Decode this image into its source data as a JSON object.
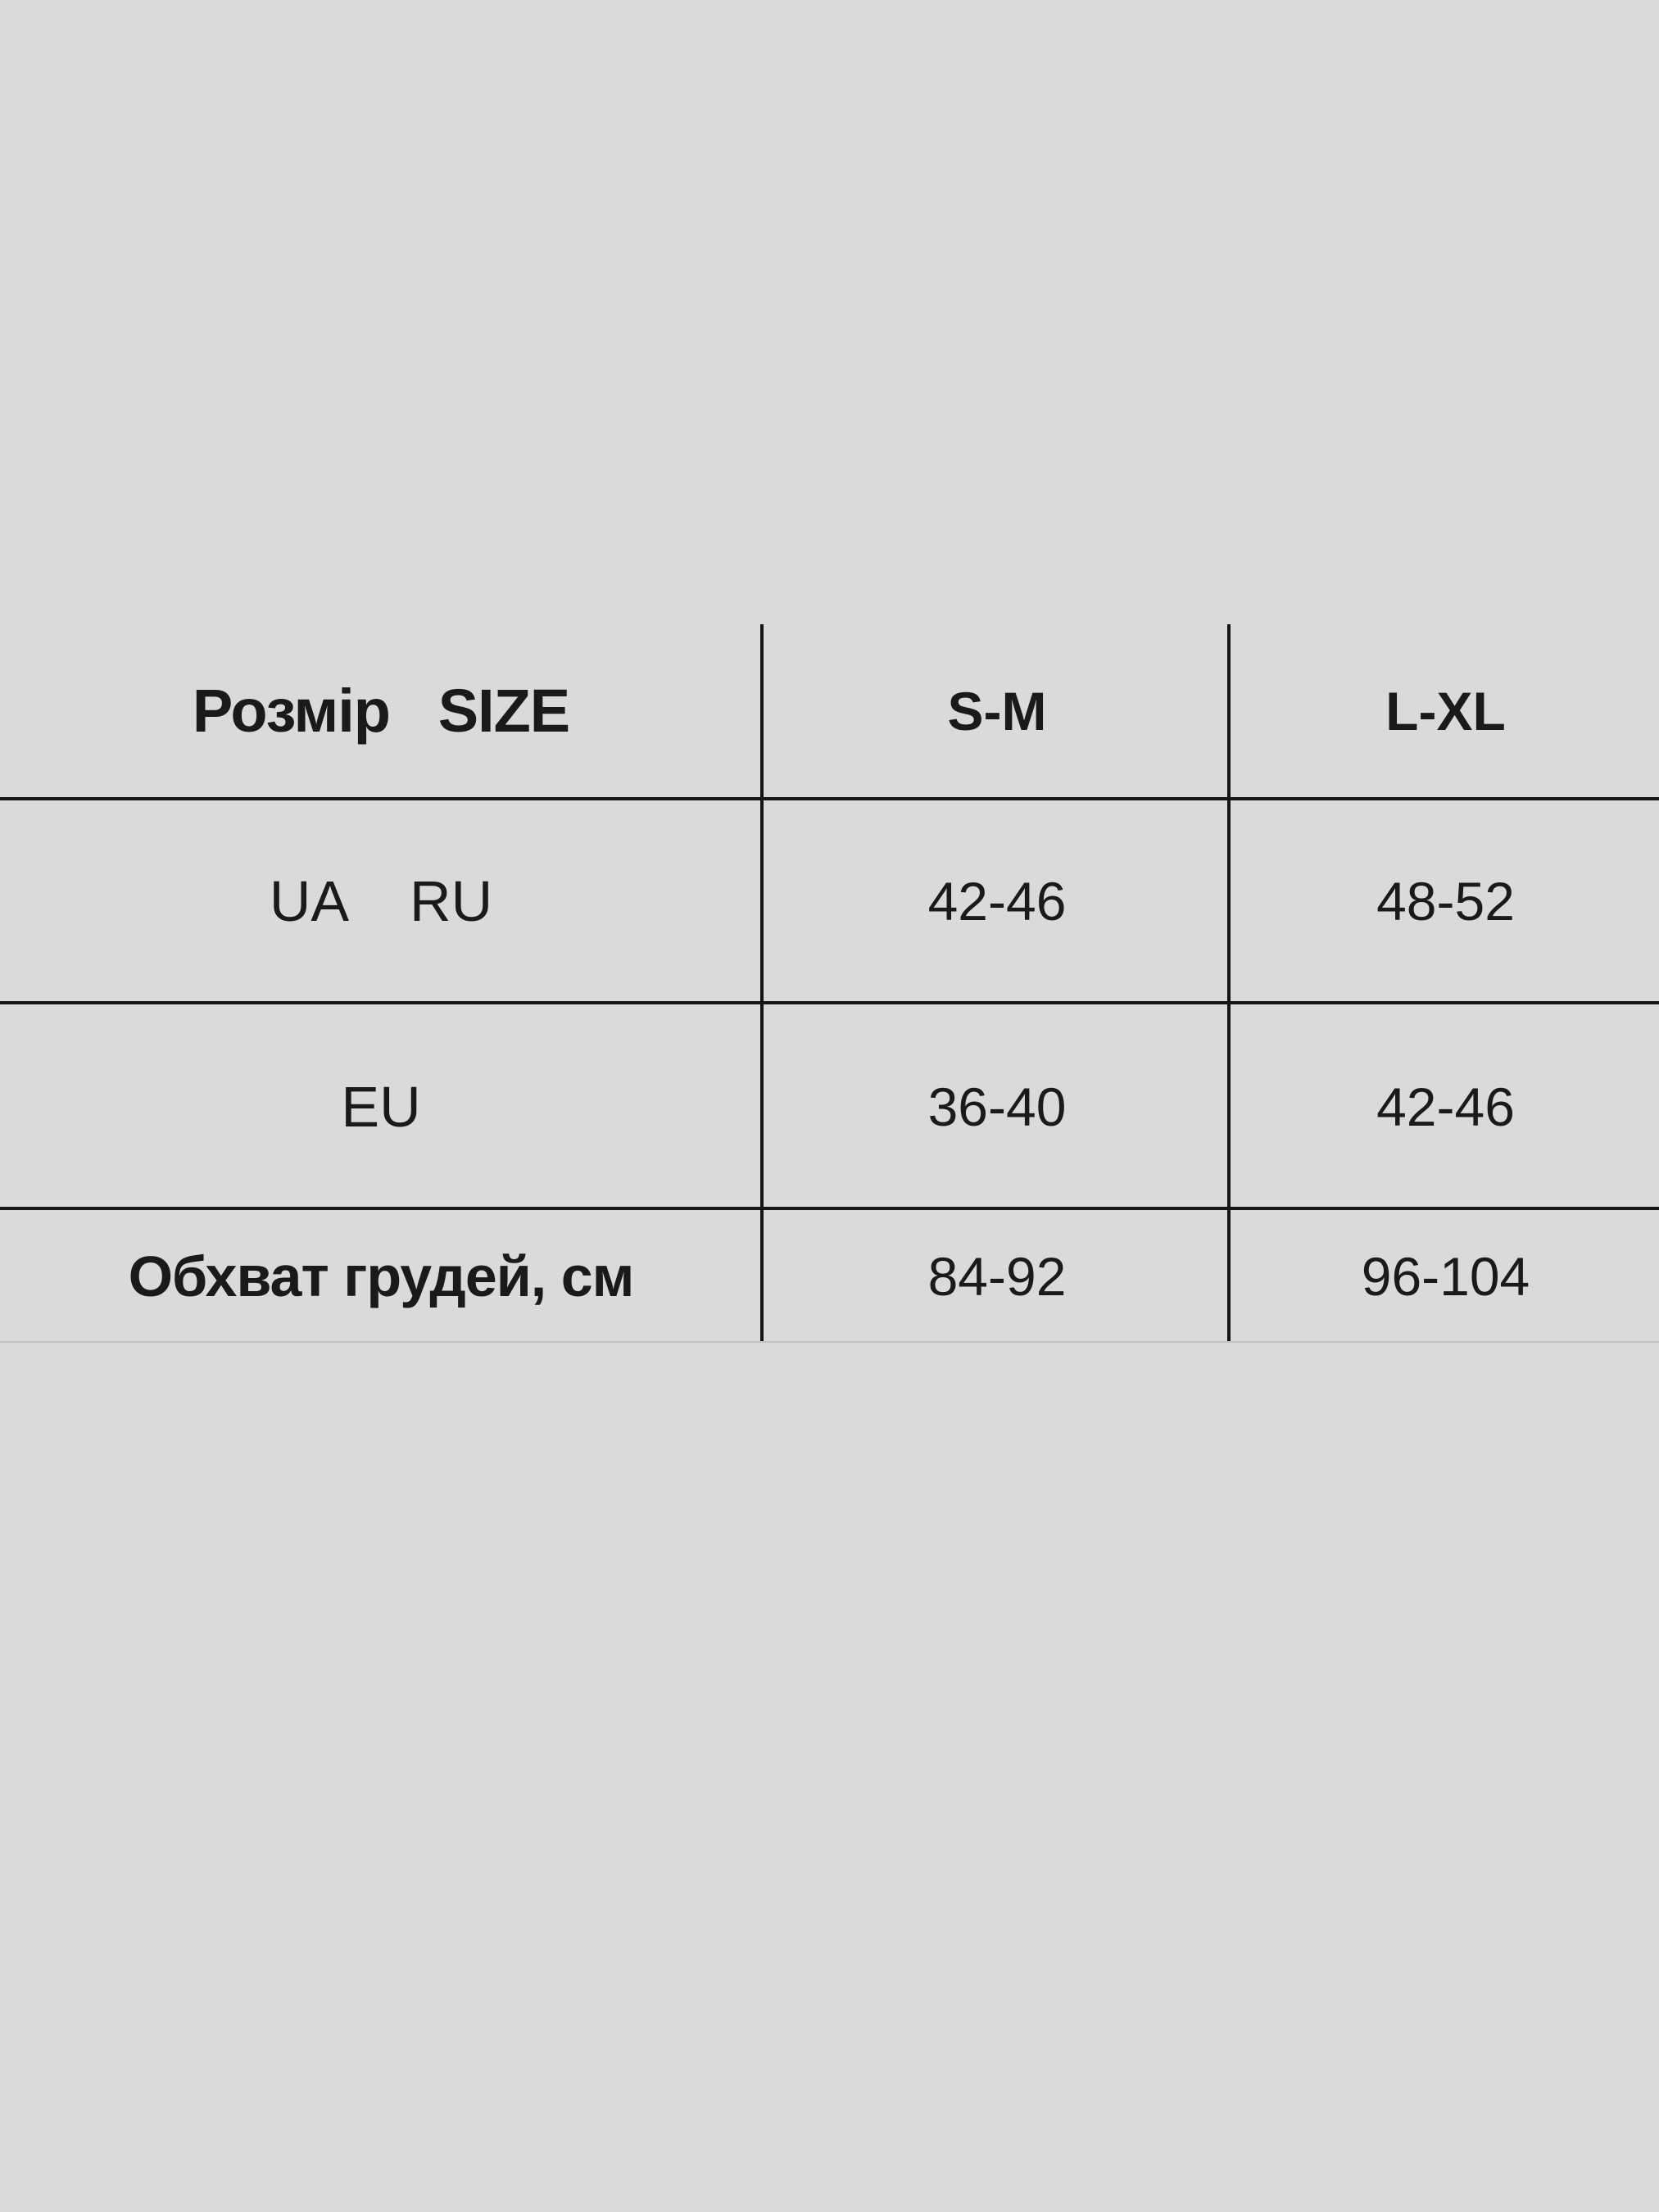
{
  "size_table": {
    "header": [
      "Розмір   SIZE",
      "S-M",
      "L-XL"
    ],
    "rows": [
      [
        "UA    RU",
        "42-46",
        "48-52"
      ],
      [
        "EU",
        "36-40",
        "42-46"
      ],
      [
        "Обхват грудей, см",
        "84-92",
        "96-104"
      ]
    ]
  },
  "colors": {
    "background": "#dadada",
    "lines": "#151515",
    "text": "#1a1a1a"
  }
}
